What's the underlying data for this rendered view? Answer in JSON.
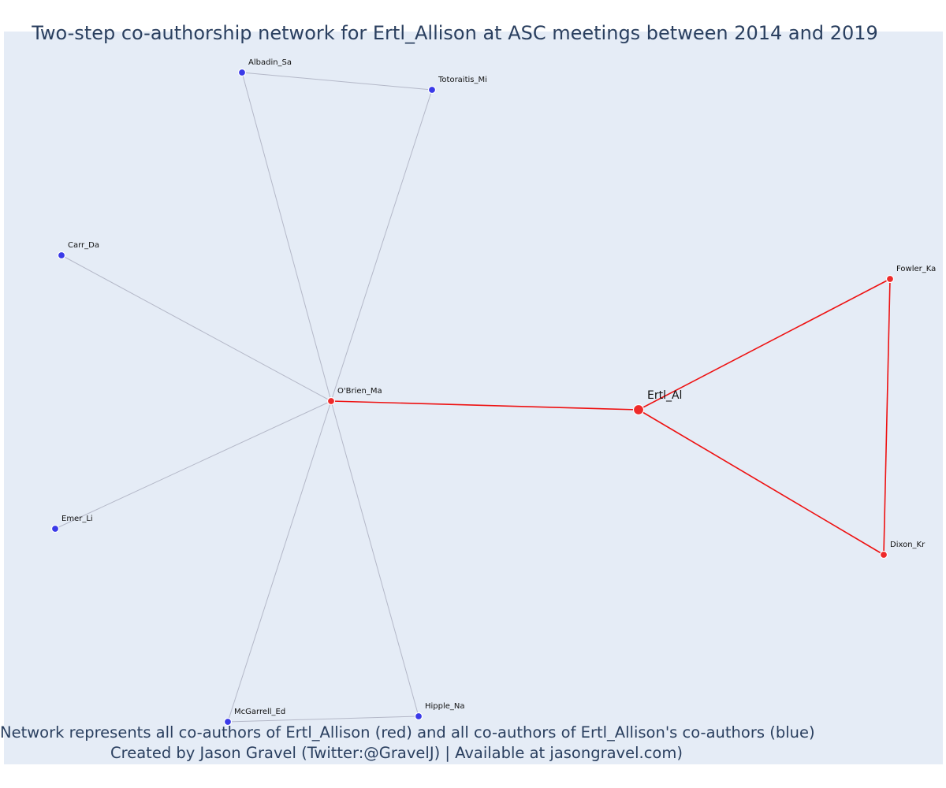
{
  "title": "Two-step co-authorship network for Ertl_Allison at ASC meetings between 2014 and 2019",
  "caption": {
    "line1": "Network represents all co-authors of Ertl_Allison (red) and all co-authors of Ertl_Allison's co-authors (blue)",
    "line2": "Created by Jason Gravel (Twitter:@GravelJ) | Available at jasongravel.com)"
  },
  "colors": {
    "background": "#e5ecf6",
    "first_degree": "#ee2a2a",
    "second_degree": "#3a3ae8",
    "first_degree_edge": "#ee1111",
    "second_degree_edge": "#b4b8c8"
  },
  "nodes": [
    {
      "id": "Ertl_Al",
      "label": "Ertl_Al",
      "group": "focal"
    },
    {
      "id": "O'Brien_Ma",
      "label": "O'Brien_Ma",
      "group": "red"
    },
    {
      "id": "Fowler_Ka",
      "label": "Fowler_Ka",
      "group": "red"
    },
    {
      "id": "Dixon_Kr",
      "label": "Dixon_Kr",
      "group": "red"
    },
    {
      "id": "Albadin_Sa",
      "label": "Albadin_Sa",
      "group": "blue"
    },
    {
      "id": "Totoraitis_Mi",
      "label": "Totoraitis_Mi",
      "group": "blue"
    },
    {
      "id": "Carr_Da",
      "label": "Carr_Da",
      "group": "blue"
    },
    {
      "id": "Emer_Li",
      "label": "Emer_Li",
      "group": "blue"
    },
    {
      "id": "McGarrell_Ed",
      "label": "McGarrell_Ed",
      "group": "blue"
    },
    {
      "id": "Hipple_Na",
      "label": "Hipple_Na",
      "group": "blue"
    }
  ],
  "edges": [
    {
      "source": "Ertl_Al",
      "target": "O'Brien_Ma",
      "group": "red"
    },
    {
      "source": "Ertl_Al",
      "target": "Fowler_Ka",
      "group": "red"
    },
    {
      "source": "Ertl_Al",
      "target": "Dixon_Kr",
      "group": "red"
    },
    {
      "source": "Fowler_Ka",
      "target": "Dixon_Kr",
      "group": "red"
    },
    {
      "source": "O'Brien_Ma",
      "target": "Albadin_Sa",
      "group": "blue"
    },
    {
      "source": "O'Brien_Ma",
      "target": "Totoraitis_Mi",
      "group": "blue"
    },
    {
      "source": "O'Brien_Ma",
      "target": "Carr_Da",
      "group": "blue"
    },
    {
      "source": "O'Brien_Ma",
      "target": "Emer_Li",
      "group": "blue"
    },
    {
      "source": "O'Brien_Ma",
      "target": "McGarrell_Ed",
      "group": "blue"
    },
    {
      "source": "O'Brien_Ma",
      "target": "Hipple_Na",
      "group": "blue"
    },
    {
      "source": "Albadin_Sa",
      "target": "Totoraitis_Mi",
      "group": "blue"
    },
    {
      "source": "McGarrell_Ed",
      "target": "Hipple_Na",
      "group": "blue"
    }
  ]
}
